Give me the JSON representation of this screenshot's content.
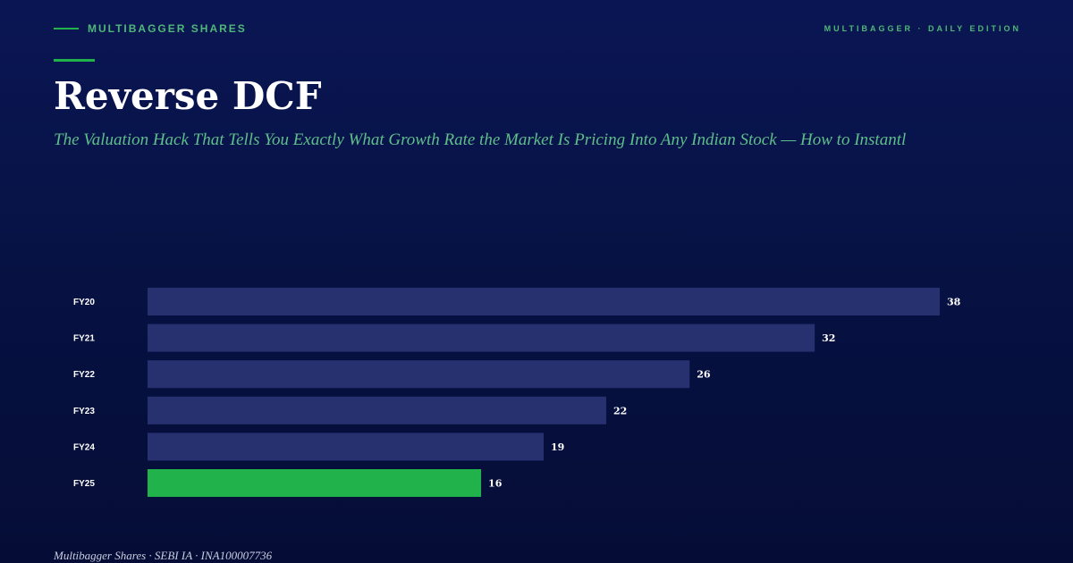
{
  "header": {
    "brand": "MULTIBAGGER SHARES",
    "edition": "MULTIBAGGER · DAILY EDITION"
  },
  "title": "Reverse DCF",
  "subtitle": "The Valuation Hack That Tells You Exactly What Growth Rate the Market Is Pricing Into Any Indian Stock — How to Instantl",
  "footer": "Multibagger Shares · SEBI IA · INA100007736",
  "colors": {
    "bar": "#283170",
    "highlight": "#22b24c",
    "label": "#ffffff",
    "accent": "#22b24c"
  },
  "chart_data": {
    "type": "bar",
    "orientation": "horizontal",
    "categories": [
      "FY20",
      "FY21",
      "FY22",
      "FY23",
      "FY24",
      "FY25"
    ],
    "values": [
      38,
      32,
      26,
      22,
      19,
      16
    ],
    "highlight_index": 5,
    "xlim": [
      0,
      38
    ],
    "grid": false,
    "legend": "none"
  }
}
